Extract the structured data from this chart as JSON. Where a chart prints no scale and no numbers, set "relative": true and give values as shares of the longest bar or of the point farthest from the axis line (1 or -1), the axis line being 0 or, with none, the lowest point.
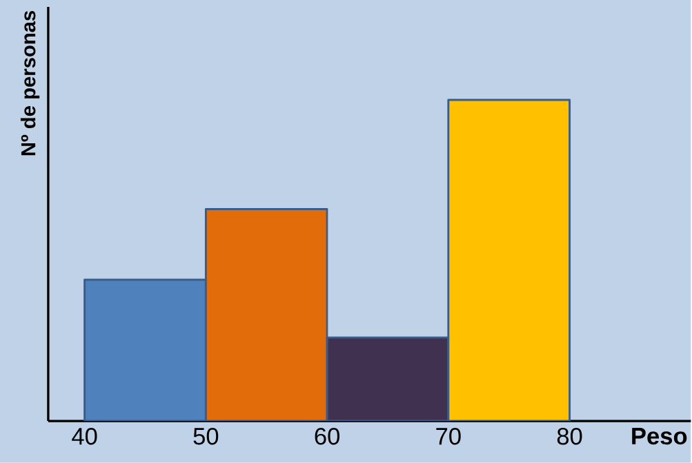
{
  "chart_data": {
    "type": "bar",
    "xlabel": "Peso",
    "ylabel": "Nº de personas",
    "x": [
      45,
      55,
      65,
      75
    ],
    "values": [
      0.44,
      0.66,
      0.26,
      1
    ],
    "colors": [
      "#4f81bd",
      "#e36c0a",
      "#403151",
      "#ffc000"
    ],
    "relative": true,
    "xlim": [
      37,
      90
    ],
    "xticks": [
      {
        "value": 40,
        "label": "40"
      },
      {
        "value": 50,
        "label": "50"
      },
      {
        "value": 60,
        "label": "60"
      },
      {
        "value": 70,
        "label": "70"
      },
      {
        "value": 80,
        "label": "80"
      }
    ]
  }
}
